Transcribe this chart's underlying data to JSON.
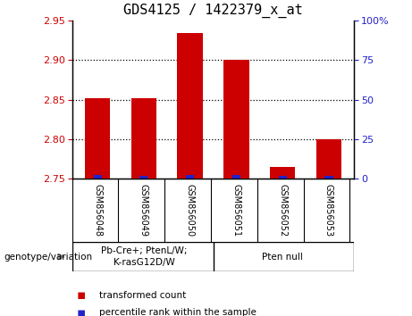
{
  "title": "GDS4125 / 1422379_x_at",
  "samples": [
    "GSM856048",
    "GSM856049",
    "GSM856050",
    "GSM856051",
    "GSM856052",
    "GSM856053"
  ],
  "red_values": [
    2.852,
    2.852,
    2.934,
    2.9,
    2.765,
    2.8
  ],
  "blue_values": [
    2.0,
    1.5,
    2.5,
    2.5,
    1.5,
    1.5
  ],
  "ylim_left": [
    2.75,
    2.95
  ],
  "ylim_right": [
    0,
    100
  ],
  "yticks_left": [
    2.75,
    2.8,
    2.85,
    2.9,
    2.95
  ],
  "yticks_right": [
    0,
    25,
    50,
    75,
    100
  ],
  "ytick_labels_right": [
    "0",
    "25",
    "50",
    "75",
    "100%"
  ],
  "bar_width": 0.55,
  "bar_color_red": "#cc0000",
  "bar_color_blue": "#2222cc",
  "group1_label": "Pb-Cre+; PtenL/W;\nK-rasG12D/W",
  "group2_label": "Pten null",
  "group1_indices": [
    0,
    1,
    2
  ],
  "group2_indices": [
    3,
    4,
    5
  ],
  "group_bg_color": "#77ee77",
  "tick_area_color": "#c8c8c8",
  "genotype_label": "genotype/variation",
  "legend_red": "transformed count",
  "legend_blue": "percentile rank within the sample",
  "title_fontsize": 11,
  "tick_fontsize": 8
}
